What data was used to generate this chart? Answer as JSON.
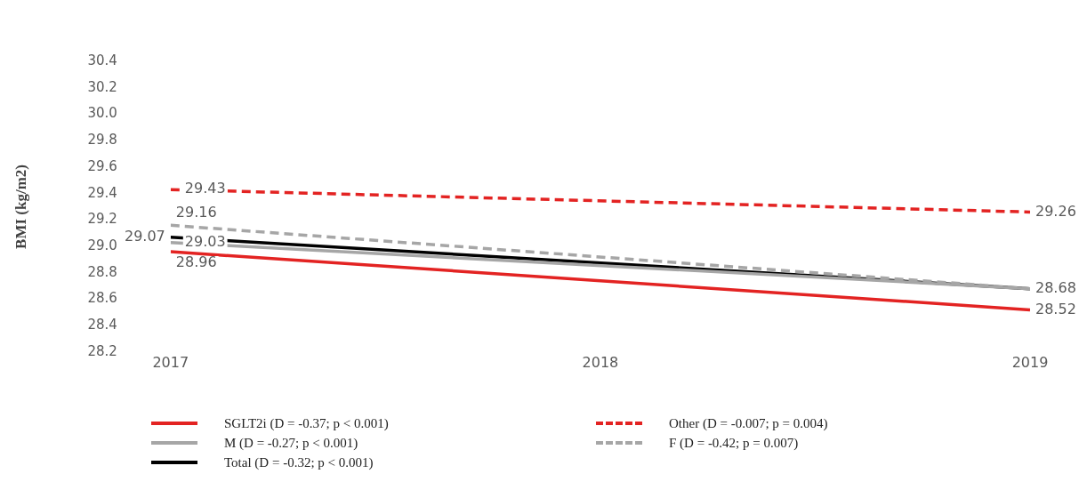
{
  "chart_data": {
    "type": "line",
    "ylabel": "BMI (kg/m2)",
    "x": [
      2017,
      2019
    ],
    "xlim": [
      2017,
      2019
    ],
    "xticks": [
      2017,
      2018,
      2019
    ],
    "ylim": [
      28.2,
      30.4
    ],
    "yticks": [
      28.2,
      28.4,
      28.6,
      28.8,
      {
        "value": 29,
        "label": "29.0"
      },
      29.2,
      29.4,
      29.6,
      29.8,
      {
        "value": 30,
        "label": "30.0"
      },
      30.2,
      30.4
    ],
    "grid": false,
    "legend": "bottom",
    "marker": "none",
    "series": [
      {
        "name": "SGLT2i (D = -0.37; p < 0.001)",
        "color": "#e32322",
        "values": [
          28.96,
          28.52
        ],
        "value_labels": [
          "28.96",
          "28.52"
        ],
        "line_style": "solid"
      },
      {
        "name": "Other (D = -0.007; p = 0.004)",
        "color": "#e32322",
        "values": [
          29.43,
          29.26
        ],
        "value_labels": [
          "29.43",
          "29.26"
        ],
        "line_style": "dashed"
      },
      {
        "name": "M (D = -0.27; p < 0.001)",
        "color": "#a6a6a6",
        "values": [
          29.03,
          28.68
        ],
        "value_labels": [
          "29.03",
          "28.68"
        ],
        "line_style": "solid"
      },
      {
        "name": "F (D = -0.42; p = 0.007)",
        "color": "#a6a6a6",
        "values": [
          29.16,
          28.68
        ],
        "value_labels": [
          "29.16",
          null
        ],
        "line_style": "dashed"
      },
      {
        "name": "Total (D = -0.32; p < 0.001)",
        "color": "#000000",
        "values": [
          29.07,
          28.68
        ],
        "value_labels": [
          "29.07",
          null
        ],
        "line_style": "solid"
      }
    ]
  }
}
